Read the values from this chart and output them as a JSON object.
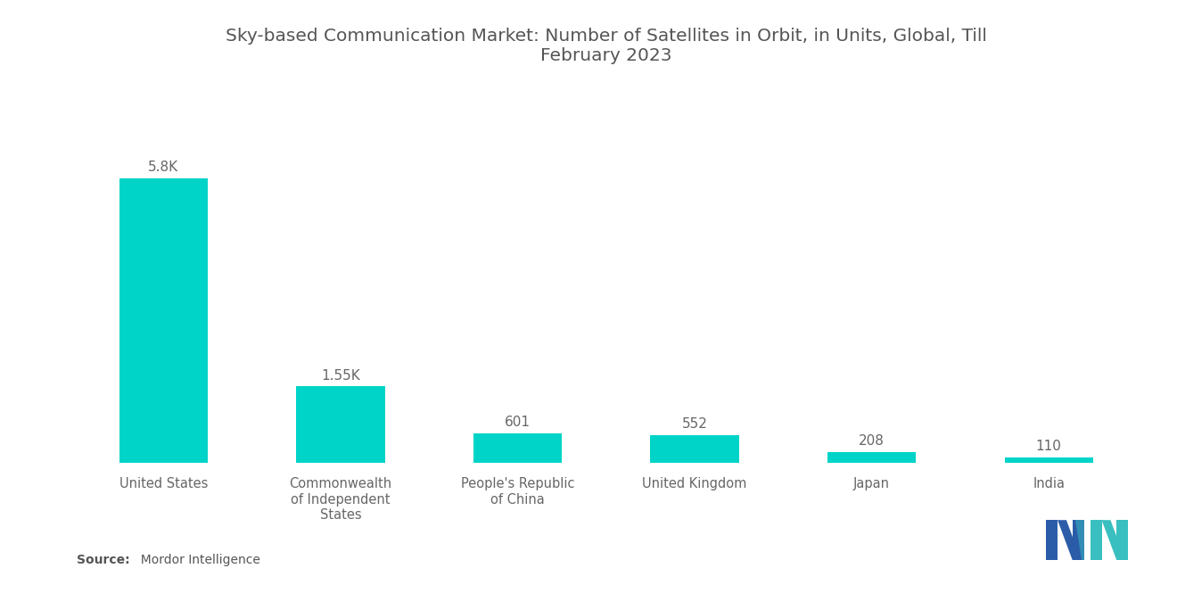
{
  "title": "Sky-based Communication Market: Number of Satellites in Orbit, in Units, Global, Till\nFebruary 2023",
  "categories": [
    "United States",
    "Commonwealth\nof Independent\nStates",
    "People's Republic\nof China",
    "United Kingdom",
    "Japan",
    "India"
  ],
  "values": [
    5800,
    1550,
    601,
    552,
    208,
    110
  ],
  "labels": [
    "5.8K",
    "1.55K",
    "601",
    "552",
    "208",
    "110"
  ],
  "bar_color": "#00D4C8",
  "background_color": "#FFFFFF",
  "title_fontsize": 14.5,
  "label_fontsize": 11,
  "tick_fontsize": 10.5,
  "source_bold": "Source:",
  "source_normal": "  Mordor Intelligence",
  "ylim": [
    0,
    7500
  ]
}
